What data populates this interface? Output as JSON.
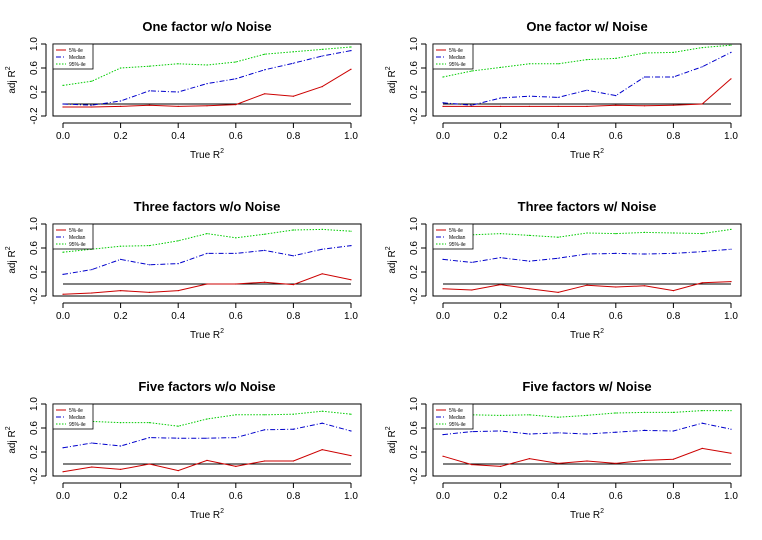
{
  "figure": {
    "background": "#ffffff",
    "series_colors": {
      "5%-ile": "#cc0000",
      "Median": "#0000cc",
      "95%-ile": "#00cc00"
    },
    "reference_line_color": "#000000"
  },
  "chart_data": [
    {
      "type": "line",
      "title": "One factor w/o Noise",
      "xlabel": "True R",
      "xlabel_superscript": "2",
      "ylabel": "adj R",
      "ylabel_superscript": "2",
      "xlim": [
        0,
        1
      ],
      "ylim": [
        -0.2,
        1.0
      ],
      "xticks": [
        "0.0",
        "0.2",
        "0.4",
        "0.6",
        "0.8",
        "1.0"
      ],
      "yticks": [
        "-0.2",
        "0.2",
        "0.6",
        "1.0"
      ],
      "legend": {
        "position": "top-left",
        "entries": [
          "5%-ile",
          "Median",
          "95%-ile"
        ]
      },
      "reference_line": 0.0,
      "x": [
        0.0,
        0.1,
        0.2,
        0.3,
        0.4,
        0.5,
        0.6,
        0.7,
        0.8,
        0.9,
        1.0
      ],
      "series": [
        {
          "name": "5%-ile",
          "values": [
            -0.05,
            -0.05,
            -0.04,
            -0.02,
            -0.04,
            -0.03,
            -0.01,
            0.17,
            0.13,
            0.29,
            0.58
          ]
        },
        {
          "name": "Median",
          "values": [
            0.0,
            -0.02,
            0.05,
            0.22,
            0.2,
            0.34,
            0.42,
            0.57,
            0.68,
            0.8,
            0.89
          ]
        },
        {
          "name": "95%-ile",
          "values": [
            0.31,
            0.38,
            0.6,
            0.63,
            0.67,
            0.65,
            0.7,
            0.83,
            0.87,
            0.91,
            0.95
          ]
        }
      ]
    },
    {
      "type": "line",
      "title": "One factor w/ Noise",
      "xlabel": "True R",
      "xlabel_superscript": "2",
      "ylabel": "adj R",
      "ylabel_superscript": "2",
      "xlim": [
        0,
        1
      ],
      "ylim": [
        -0.2,
        1.0
      ],
      "xticks": [
        "0.0",
        "0.2",
        "0.4",
        "0.6",
        "0.8",
        "1.0"
      ],
      "yticks": [
        "-0.2",
        "0.2",
        "0.6",
        "1.0"
      ],
      "legend": {
        "position": "top-left",
        "entries": [
          "5%-ile",
          "Median",
          "95%-ile"
        ]
      },
      "reference_line": 0.0,
      "x": [
        0.0,
        0.1,
        0.2,
        0.3,
        0.4,
        0.5,
        0.6,
        0.7,
        0.8,
        0.9,
        1.0
      ],
      "series": [
        {
          "name": "5%-ile",
          "values": [
            -0.04,
            -0.04,
            -0.04,
            -0.04,
            -0.04,
            -0.04,
            -0.02,
            -0.03,
            -0.02,
            0.0,
            0.42
          ]
        },
        {
          "name": "Median",
          "values": [
            0.02,
            -0.02,
            0.1,
            0.13,
            0.11,
            0.23,
            0.14,
            0.45,
            0.45,
            0.62,
            0.86
          ]
        },
        {
          "name": "95%-ile",
          "values": [
            0.45,
            0.55,
            0.61,
            0.67,
            0.67,
            0.74,
            0.76,
            0.85,
            0.86,
            0.94,
            0.98
          ]
        }
      ]
    },
    {
      "type": "line",
      "title": "Three factors w/o Noise",
      "xlabel": "True R",
      "xlabel_superscript": "2",
      "ylabel": "adj R",
      "ylabel_superscript": "2",
      "xlim": [
        0,
        1
      ],
      "ylim": [
        -0.2,
        1.0
      ],
      "xticks": [
        "0.0",
        "0.2",
        "0.4",
        "0.6",
        "0.8",
        "1.0"
      ],
      "yticks": [
        "-0.2",
        "0.2",
        "0.6",
        "1.0"
      ],
      "legend": {
        "position": "top-left",
        "entries": [
          "5%-ile",
          "Median",
          "95%-ile"
        ]
      },
      "reference_line": 0.0,
      "x": [
        0.0,
        0.1,
        0.2,
        0.3,
        0.4,
        0.5,
        0.6,
        0.7,
        0.8,
        0.9,
        1.0
      ],
      "series": [
        {
          "name": "5%-ile",
          "values": [
            -0.17,
            -0.15,
            -0.11,
            -0.14,
            -0.11,
            0.0,
            0.0,
            0.03,
            -0.01,
            0.17,
            0.07
          ]
        },
        {
          "name": "Median",
          "values": [
            0.16,
            0.24,
            0.41,
            0.32,
            0.34,
            0.51,
            0.51,
            0.56,
            0.47,
            0.58,
            0.64
          ]
        },
        {
          "name": "95%-ile",
          "values": [
            0.53,
            0.58,
            0.63,
            0.64,
            0.72,
            0.84,
            0.77,
            0.83,
            0.9,
            0.91,
            0.88
          ]
        }
      ]
    },
    {
      "type": "line",
      "title": "Three factors w/ Noise",
      "xlabel": "True R",
      "xlabel_superscript": "2",
      "ylabel": "adj R",
      "ylabel_superscript": "2",
      "xlim": [
        0,
        1
      ],
      "ylim": [
        -0.2,
        1.0
      ],
      "xticks": [
        "0.0",
        "0.2",
        "0.4",
        "0.6",
        "0.8",
        "1.0"
      ],
      "yticks": [
        "-0.2",
        "0.2",
        "0.6",
        "1.0"
      ],
      "legend": {
        "position": "top-left",
        "entries": [
          "5%-ile",
          "Median",
          "95%-ile"
        ]
      },
      "reference_line": 0.0,
      "x": [
        0.0,
        0.1,
        0.2,
        0.3,
        0.4,
        0.5,
        0.6,
        0.7,
        0.8,
        0.9,
        1.0
      ],
      "series": [
        {
          "name": "5%-ile",
          "values": [
            -0.08,
            -0.1,
            -0.01,
            -0.08,
            -0.14,
            -0.02,
            -0.05,
            -0.03,
            -0.11,
            0.02,
            0.04
          ]
        },
        {
          "name": "Median",
          "values": [
            0.41,
            0.36,
            0.44,
            0.38,
            0.43,
            0.5,
            0.51,
            0.5,
            0.51,
            0.54,
            0.58
          ]
        },
        {
          "name": "95%-ile",
          "values": [
            0.76,
            0.82,
            0.84,
            0.81,
            0.78,
            0.85,
            0.84,
            0.86,
            0.85,
            0.84,
            0.91
          ]
        }
      ]
    },
    {
      "type": "line",
      "title": "Five factors w/o Noise",
      "xlabel": "True R",
      "xlabel_superscript": "2",
      "ylabel": "adj R",
      "ylabel_superscript": "2",
      "xlim": [
        0,
        1
      ],
      "ylim": [
        -0.2,
        1.0
      ],
      "xticks": [
        "0.0",
        "0.2",
        "0.4",
        "0.6",
        "0.8",
        "1.0"
      ],
      "yticks": [
        "-0.2",
        "0.2",
        "0.6",
        "1.0"
      ],
      "legend": {
        "position": "top-left",
        "entries": [
          "5%-ile",
          "Median",
          "95%-ile"
        ]
      },
      "reference_line": 0.0,
      "x": [
        0.0,
        0.1,
        0.2,
        0.3,
        0.4,
        0.5,
        0.6,
        0.7,
        0.8,
        0.9,
        1.0
      ],
      "series": [
        {
          "name": "5%-ile",
          "values": [
            -0.13,
            -0.05,
            -0.09,
            0.0,
            -0.11,
            0.06,
            -0.04,
            0.05,
            0.05,
            0.24,
            0.14
          ]
        },
        {
          "name": "Median",
          "values": [
            0.27,
            0.35,
            0.3,
            0.44,
            0.43,
            0.43,
            0.44,
            0.57,
            0.58,
            0.68,
            0.55
          ]
        },
        {
          "name": "95%-ile",
          "values": [
            0.65,
            0.71,
            0.69,
            0.69,
            0.63,
            0.75,
            0.82,
            0.82,
            0.83,
            0.88,
            0.83
          ]
        }
      ]
    },
    {
      "type": "line",
      "title": "Five factors w/ Noise",
      "xlabel": "True R",
      "xlabel_superscript": "2",
      "ylabel": "adj R",
      "ylabel_superscript": "2",
      "xlim": [
        0,
        1
      ],
      "ylim": [
        -0.2,
        1.0
      ],
      "xticks": [
        "0.0",
        "0.2",
        "0.4",
        "0.6",
        "0.8",
        "1.0"
      ],
      "yticks": [
        "-0.2",
        "0.2",
        "0.6",
        "1.0"
      ],
      "legend": {
        "position": "top-left",
        "entries": [
          "5%-ile",
          "Median",
          "95%-ile"
        ]
      },
      "reference_line": 0.0,
      "x": [
        0.0,
        0.1,
        0.2,
        0.3,
        0.4,
        0.5,
        0.6,
        0.7,
        0.8,
        0.9,
        1.0
      ],
      "series": [
        {
          "name": "5%-ile",
          "values": [
            0.13,
            -0.01,
            -0.04,
            0.09,
            0.01,
            0.05,
            0.01,
            0.06,
            0.08,
            0.26,
            0.18
          ]
        },
        {
          "name": "Median",
          "values": [
            0.49,
            0.54,
            0.55,
            0.5,
            0.52,
            0.5,
            0.53,
            0.56,
            0.55,
            0.68,
            0.58
          ]
        },
        {
          "name": "95%-ile",
          "values": [
            0.78,
            0.82,
            0.81,
            0.82,
            0.78,
            0.81,
            0.85,
            0.86,
            0.86,
            0.89,
            0.89
          ]
        }
      ]
    }
  ]
}
